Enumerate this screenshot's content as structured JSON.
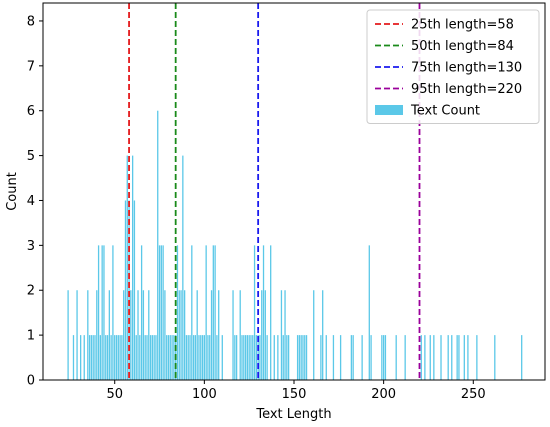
{
  "chart_data": {
    "type": "bar",
    "xlabel": "Text Length",
    "ylabel": "Count",
    "xlim": [
      10,
      290
    ],
    "ylim": [
      0,
      8.4
    ],
    "xticks": [
      50,
      100,
      150,
      200,
      250
    ],
    "yticks": [
      0,
      1,
      2,
      3,
      4,
      5,
      6,
      7,
      8
    ],
    "grid": false,
    "legend_position": "top-right",
    "bar_series": {
      "name": "Text Count",
      "color": "#5bc8e8",
      "x": [
        24,
        27,
        29,
        31,
        33,
        35,
        36,
        37,
        38,
        39,
        40,
        41,
        42,
        43,
        44,
        45,
        46,
        47,
        48,
        49,
        50,
        51,
        52,
        53,
        54,
        55,
        56,
        57,
        58,
        59,
        60,
        61,
        62,
        63,
        64,
        65,
        66,
        67,
        68,
        69,
        70,
        71,
        72,
        73,
        74,
        75,
        76,
        77,
        78,
        79,
        80,
        81,
        82,
        83,
        84,
        85,
        86,
        87,
        88,
        89,
        90,
        91,
        92,
        93,
        94,
        95,
        96,
        97,
        98,
        99,
        100,
        101,
        102,
        103,
        104,
        105,
        106,
        107,
        108,
        110,
        116,
        117,
        118,
        120,
        121,
        122,
        123,
        124,
        125,
        126,
        127,
        128,
        129,
        130,
        131,
        132,
        133,
        134,
        135,
        137,
        139,
        141,
        143,
        144,
        145,
        146,
        147,
        152,
        153,
        154,
        155,
        156,
        157,
        161,
        165,
        166,
        168,
        172,
        176,
        182,
        183,
        188,
        192,
        193,
        199,
        200,
        201,
        207,
        212,
        221,
        223,
        226,
        228,
        232,
        236,
        238,
        241,
        242,
        245,
        247,
        252,
        262,
        277
      ],
      "y": [
        2,
        1,
        2,
        1,
        1,
        2,
        1,
        1,
        1,
        1,
        2,
        3,
        1,
        3,
        3,
        1,
        1,
        2,
        1,
        3,
        1,
        1,
        1,
        1,
        1,
        2,
        4,
        5,
        4,
        2,
        5,
        4,
        1,
        2,
        1,
        3,
        2,
        1,
        1,
        2,
        1,
        1,
        1,
        1,
        6,
        3,
        3,
        3,
        2,
        1,
        1,
        1,
        1,
        1,
        1,
        3,
        2,
        2,
        5,
        2,
        1,
        1,
        1,
        3,
        1,
        1,
        2,
        1,
        1,
        1,
        1,
        3,
        1,
        1,
        2,
        3,
        3,
        1,
        2,
        1,
        2,
        1,
        1,
        2,
        1,
        1,
        1,
        1,
        1,
        1,
        1,
        3,
        1,
        1,
        1,
        2,
        3,
        2,
        1,
        3,
        1,
        1,
        2,
        1,
        2,
        1,
        1,
        1,
        1,
        1,
        1,
        1,
        1,
        2,
        1,
        2,
        1,
        1,
        1,
        1,
        1,
        1,
        3,
        1,
        1,
        1,
        1,
        1,
        1,
        1,
        1,
        1,
        1,
        1,
        1,
        1,
        1,
        1,
        1,
        1,
        1,
        1,
        1
      ]
    },
    "percentile_lines": [
      {
        "label": "25th length=58",
        "value": 58,
        "color": "#e41a1c"
      },
      {
        "label": "50th length=84",
        "value": 84,
        "color": "#1a8a1a"
      },
      {
        "label": "75th length=130",
        "value": 130,
        "color": "#1a1aee"
      },
      {
        "label": "95th length=220",
        "value": 220,
        "color": "#9b009b"
      }
    ]
  }
}
